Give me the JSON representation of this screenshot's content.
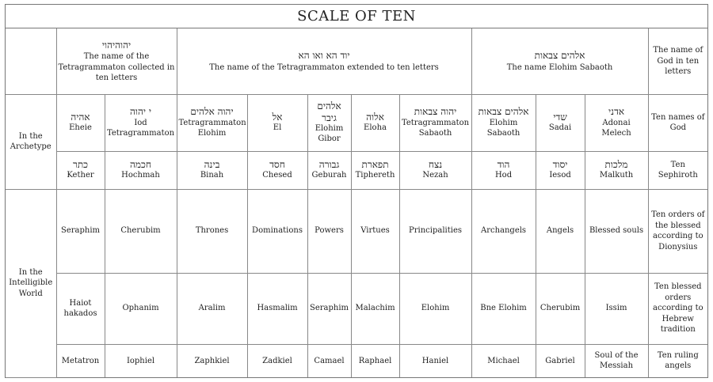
{
  "title": "SCALE OF TEN",
  "row_labels": {
    "archetype": "In the Archetype",
    "intelligible": "In the Intelligible World"
  },
  "header": {
    "col1": {
      "hebrew": "יהוהיהוי",
      "text": "The name of the Tetragrammaton collected in ten letters"
    },
    "col2": {
      "hebrew": "יוד הא ואו הא",
      "text": "The name of the Tetragrammaton extended to ten letters"
    },
    "col3": {
      "hebrew": "אלהים צבאות",
      "text": "The name Elohim Sabaoth"
    },
    "col4": {
      "text": "The name of God in ten letters"
    }
  },
  "rows": {
    "names_of_god": [
      {
        "hebrew": "אהיה",
        "text": "Eheie"
      },
      {
        "hebrew": "י יהוה",
        "text": "Iod Tetragrammaton"
      },
      {
        "hebrew": "יהוה אלהים",
        "text": "Tetragrammaton Elohim"
      },
      {
        "hebrew": "אל",
        "text": "El"
      },
      {
        "hebrew": "אלהים גיבר",
        "text": "Elohim Gibor"
      },
      {
        "hebrew": "אלוה",
        "text": "Eloha"
      },
      {
        "hebrew": "יהוה צבאות",
        "text": "Tetragrammaton Sabaoth"
      },
      {
        "hebrew": "אלהים צבאות",
        "text": "Elohim Sabaoth"
      },
      {
        "hebrew": "שדי",
        "text": "Sadai"
      },
      {
        "hebrew": "אדני",
        "text": "Adonai Melech"
      },
      {
        "text": "Ten names of God"
      }
    ],
    "sephiroth": [
      {
        "hebrew": "כתר",
        "text": "Kether"
      },
      {
        "hebrew": "חכמה",
        "text": "Hochmah"
      },
      {
        "hebrew": "בינה",
        "text": "Binah"
      },
      {
        "hebrew": "חסד",
        "text": "Chesed"
      },
      {
        "hebrew": "גבורה",
        "text": "Geburah"
      },
      {
        "hebrew": "תפארת",
        "text": "Tiphereth"
      },
      {
        "hebrew": "נצח",
        "text": "Nezah"
      },
      {
        "hebrew": "הוד",
        "text": "Hod"
      },
      {
        "hebrew": "יסוד",
        "text": "Iesod"
      },
      {
        "hebrew": "מלכות",
        "text": "Malkuth"
      },
      {
        "text": "Ten Sephiroth"
      }
    ],
    "orders_of_blessed": [
      "Seraphim",
      "Cherubim",
      "Thrones",
      "Dominations",
      "Powers",
      "Virtues",
      "Principalities",
      "Archangels",
      "Angels",
      "Blessed souls",
      "Ten orders of the blessed according to Dionysius"
    ],
    "blessed_hebrew": [
      "Haiot hakados",
      "Ophanim",
      "Aralim",
      "Hasmalim",
      "Seraphim",
      "Malachim",
      "Elohim",
      "Bne Elohim",
      "Cherubim",
      "Issim",
      "Ten blessed orders according to Hebrew tradition"
    ],
    "ruling_angels": [
      "Metatron",
      "Iophiel",
      "Zaphkiel",
      "Zadkiel",
      "Camael",
      "Raphael",
      "Haniel",
      "Michael",
      "Gabriel",
      "Soul of the Messiah",
      "Ten ruling angels"
    ]
  }
}
